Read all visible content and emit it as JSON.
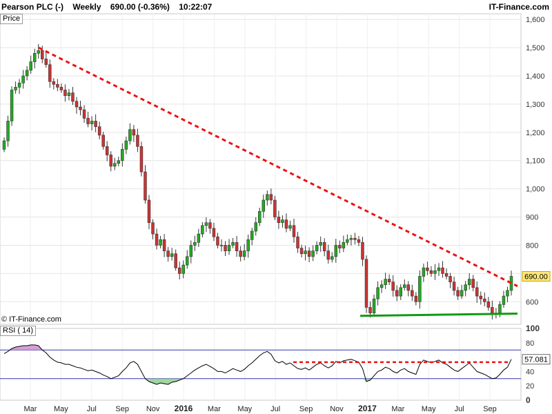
{
  "header": {
    "instrument": "Pearson PLC (-)",
    "period": "Weekly",
    "price_change": "690.00 (-0.36%)",
    "time": "10:22:07",
    "brand": "IT-Finance.com"
  },
  "price_panel": {
    "label": "Price",
    "watermark": "© IT-Finance.com"
  },
  "rsi_panel": {
    "label": "RSI ( 14)"
  },
  "colors": {
    "up": "#22aa22",
    "down": "#cc3333",
    "trend": "#ee1111",
    "support": "#119911",
    "rsi_line": "#000000",
    "rsi_band": "#3333aa",
    "rsi_over": "#cc88cc",
    "rsi_under": "#88cc88"
  },
  "chart_data": [
    {
      "type": "candlestick",
      "title": "Pearson PLC (-) Weekly",
      "ylim": [
        520,
        1620
      ],
      "y_ticks": [
        600,
        700,
        800,
        900,
        1000,
        1100,
        1200,
        1300,
        1400,
        1500,
        1600
      ],
      "y_tick_labels": [
        "600",
        "",
        "800",
        "900",
        "1,000",
        "1,100",
        "1,200",
        "1,300",
        "1,400",
        "1,500",
        "1,600"
      ],
      "x_tick_labels": [
        "Mar",
        "May",
        "Jul",
        "Sep",
        "Nov",
        "2016",
        "Mar",
        "May",
        "Jul",
        "Sep",
        "Nov",
        "2017",
        "Mar",
        "May",
        "Jul",
        "Sep"
      ],
      "last_price": "690.00",
      "close": [
        1170,
        1240,
        1350,
        1360,
        1375,
        1400,
        1420,
        1450,
        1480,
        1490,
        1460,
        1440,
        1380,
        1370,
        1360,
        1350,
        1330,
        1340,
        1310,
        1290,
        1280,
        1250,
        1230,
        1240,
        1220,
        1190,
        1150,
        1120,
        1080,
        1090,
        1100,
        1140,
        1170,
        1210,
        1190,
        1150,
        1060,
        960,
        880,
        840,
        800,
        820,
        780,
        760,
        770,
        720,
        700,
        730,
        760,
        800,
        810,
        840,
        870,
        880,
        860,
        830,
        800,
        800,
        780,
        800,
        810,
        780,
        760,
        780,
        820,
        850,
        880,
        920,
        960,
        980,
        960,
        900,
        880,
        890,
        860,
        870,
        830,
        790,
        770,
        780,
        760,
        780,
        800,
        810,
        780,
        750,
        760,
        800,
        790,
        810,
        820,
        825,
        820,
        810,
        750,
        580,
        560,
        610,
        650,
        660,
        680,
        670,
        640,
        620,
        650,
        660,
        640,
        620,
        600,
        690,
        720,
        710,
        700,
        710,
        720,
        700,
        690,
        670,
        640,
        620,
        640,
        660,
        680,
        650,
        620,
        610,
        600,
        580,
        560,
        560,
        590,
        620,
        640,
        690
      ],
      "trendline_resistance": {
        "from_value": 1500,
        "to_value": 655
      },
      "trendline_support": {
        "from_value": 550,
        "to_value": 558
      }
    },
    {
      "type": "line",
      "title": "RSI ( 14)",
      "ylim": [
        0,
        100
      ],
      "y_ticks": [
        0,
        20,
        40,
        60,
        80,
        100
      ],
      "overbought": 70,
      "oversold": 30,
      "last_value": "57.081",
      "reference_line": 53,
      "values": [
        65,
        68,
        72,
        74,
        75,
        76,
        76,
        77,
        77,
        76,
        70,
        66,
        60,
        56,
        53,
        52,
        50,
        50,
        48,
        46,
        45,
        43,
        41,
        42,
        40,
        38,
        35,
        33,
        30,
        32,
        34,
        40,
        45,
        52,
        54,
        50,
        40,
        30,
        26,
        24,
        22,
        24,
        23,
        22,
        25,
        26,
        28,
        30,
        34,
        38,
        42,
        45,
        48,
        50,
        47,
        44,
        40,
        40,
        38,
        41,
        44,
        42,
        40,
        43,
        48,
        52,
        57,
        62,
        66,
        68,
        64,
        55,
        52,
        54,
        50,
        52,
        48,
        44,
        43,
        45,
        42,
        46,
        50,
        52,
        48,
        45,
        48,
        54,
        52,
        55,
        56,
        57,
        55,
        53,
        44,
        26,
        28,
        34,
        40,
        42,
        46,
        44,
        40,
        38,
        42,
        44,
        40,
        38,
        36,
        50,
        56,
        54,
        52,
        54,
        56,
        52,
        50,
        46,
        42,
        40,
        44,
        48,
        52,
        46,
        40,
        38,
        36,
        33,
        30,
        31,
        36,
        42,
        46,
        57
      ]
    }
  ]
}
